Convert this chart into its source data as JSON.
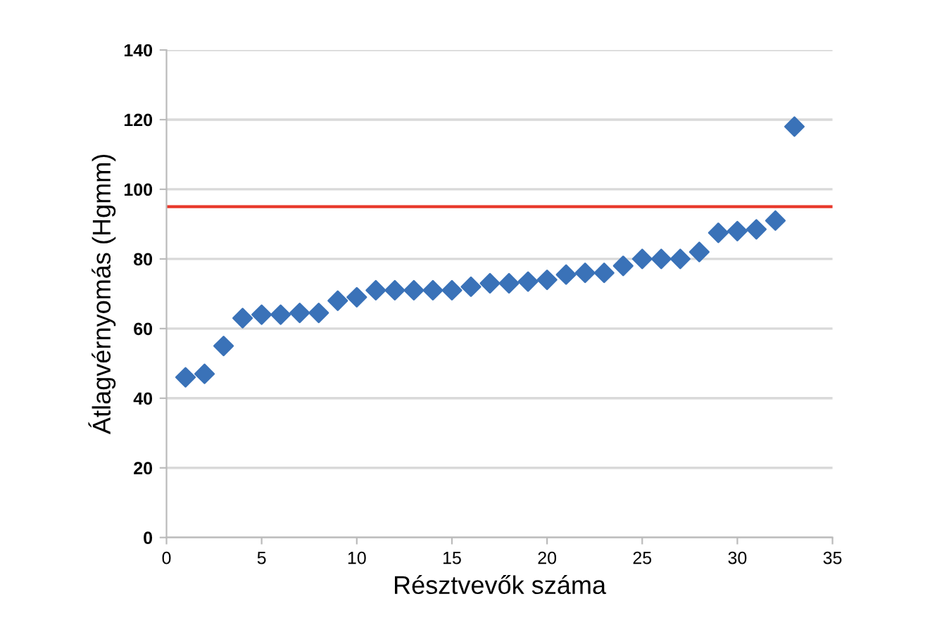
{
  "chart_data": {
    "type": "scatter",
    "xlabel": "Résztvevők száma",
    "ylabel": "Átlagvérnyomás (Hgmm)",
    "x": [
      1,
      2,
      3,
      4,
      5,
      6,
      7,
      8,
      9,
      10,
      11,
      12,
      13,
      14,
      15,
      16,
      17,
      18,
      19,
      20,
      21,
      22,
      23,
      24,
      25,
      26,
      27,
      28,
      29,
      30,
      31,
      32,
      33
    ],
    "series": [
      {
        "color": "#3a72b8",
        "values": [
          46,
          47,
          55,
          63,
          64,
          64,
          64.5,
          64.5,
          68,
          69,
          71,
          71,
          71,
          71,
          71,
          72,
          73,
          73,
          73.5,
          74,
          75.5,
          76,
          76,
          78,
          80,
          80,
          80,
          82,
          87.5,
          88,
          88.5,
          91,
          118
        ]
      }
    ],
    "marker": "diamond",
    "ref_lines": [
      {
        "axis": "y",
        "value": 95,
        "color": "#e8382b"
      }
    ],
    "xlim": [
      0,
      35
    ],
    "xticks": [
      0,
      5,
      10,
      15,
      20,
      25,
      30,
      35
    ],
    "ylim": [
      0,
      140
    ],
    "yticks": [
      0,
      20,
      40,
      60,
      80,
      100,
      120,
      140
    ],
    "grid": "y",
    "legend": false
  }
}
